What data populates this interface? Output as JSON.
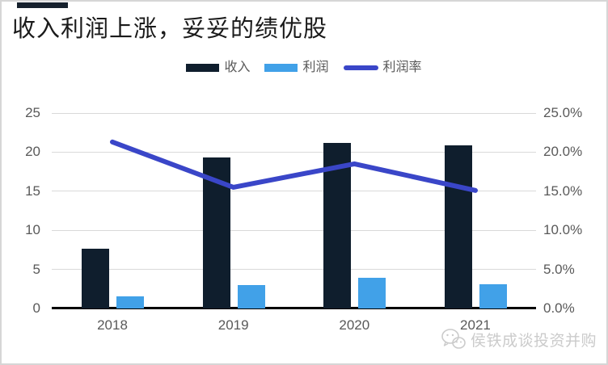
{
  "page": {
    "title": "收入利润上涨，妥妥的绩优股",
    "watermark": "侯铁成谈投资并购"
  },
  "colors": {
    "revenue_bar": "#0f1e2d",
    "profit_bar": "#41a1e8",
    "margin_line": "#3a46c8",
    "gridline": "#d9d9d9",
    "axis_text": "#595959",
    "accent_bar": "#16212d",
    "watermark": "#cbcbcb"
  },
  "chart_data": {
    "type": "bar",
    "subtype": "bar-line-combo",
    "categories": [
      "2018",
      "2019",
      "2020",
      "2021"
    ],
    "series": [
      {
        "name": "收入",
        "kind": "bar",
        "color": "#0f1e2d",
        "axis": "left",
        "values": [
          7.6,
          19.3,
          21.2,
          20.9
        ]
      },
      {
        "name": "利润",
        "kind": "bar",
        "color": "#41a1e8",
        "axis": "left",
        "values": [
          1.6,
          3.0,
          3.9,
          3.1
        ]
      },
      {
        "name": "利润率",
        "kind": "line",
        "color": "#3a46c8",
        "axis": "right",
        "values_pct": [
          21.3,
          15.5,
          18.5,
          15.1
        ]
      }
    ],
    "left_axis": {
      "ticks": [
        "0",
        "5",
        "10",
        "15",
        "20",
        "25"
      ],
      "range": [
        0,
        25
      ]
    },
    "right_axis": {
      "ticks": [
        "0.0%",
        "5.0%",
        "10.0%",
        "15.0%",
        "20.0%",
        "25.0%"
      ],
      "range_pct": [
        0,
        25
      ]
    },
    "grid": true,
    "legend_position": "top-center"
  }
}
